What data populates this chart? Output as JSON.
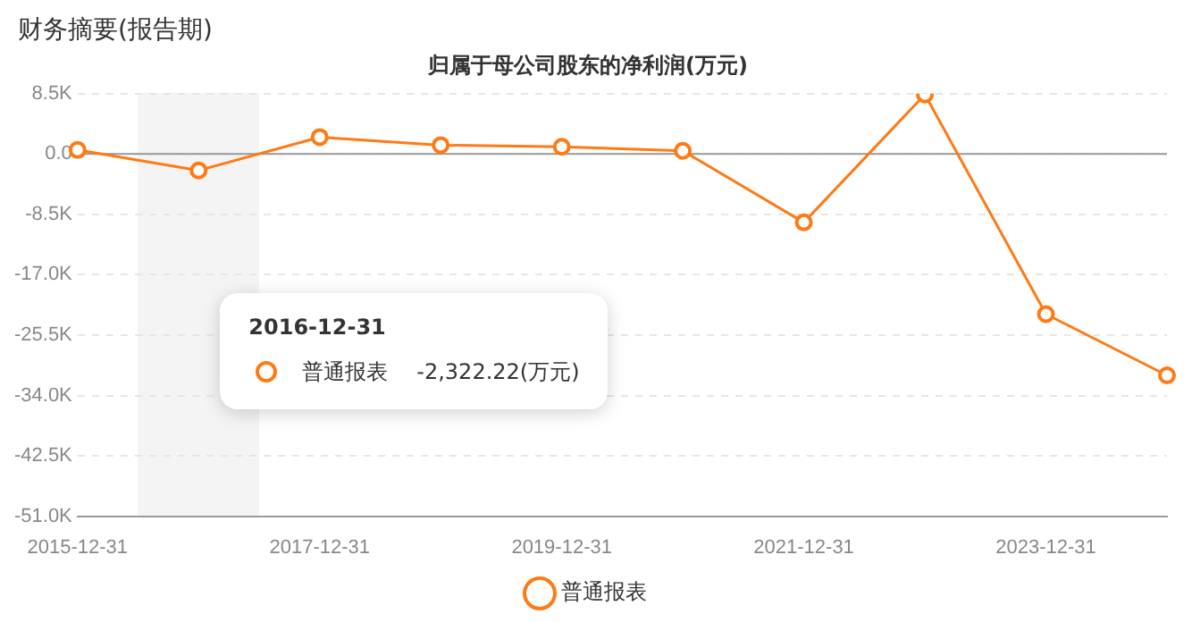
{
  "chart_data": {
    "type": "line",
    "title": "归属于母公司股东的净利润(万元)",
    "subtitle": "财务摘要(报告期)",
    "categories": [
      "2015-12-31",
      null,
      "2017-12-31",
      null,
      "2019-12-31",
      null,
      "2021-12-31",
      null,
      "2023-12-31",
      null
    ],
    "series": [
      {
        "name": "普通报表",
        "color": "#ff7a14",
        "values": [
          570,
          -2322.22,
          2380,
          1250,
          1020,
          450,
          -9630,
          8390,
          -22550,
          -31170
        ]
      }
    ],
    "ylim": [
      -51000,
      8500
    ],
    "yticks": [
      {
        "value": -51000,
        "label": "-51.0K"
      },
      {
        "value": -42500,
        "label": "-42.5K"
      },
      {
        "value": -34000,
        "label": "-34.0K"
      },
      {
        "value": -25500,
        "label": "-25.5K"
      },
      {
        "value": -17000,
        "label": "-17.0K"
      },
      {
        "value": -8500,
        "label": "-8.5K"
      },
      {
        "value": 0,
        "label": "0.0"
      },
      {
        "value": 8500,
        "label": "8.5K"
      }
    ],
    "grid": "y",
    "legend": "bottom",
    "marker": "circle",
    "line_style": "solid",
    "annotations": [
      "2016-12-31",
      "普通报表",
      "-2,322.22(万元)"
    ]
  }
}
